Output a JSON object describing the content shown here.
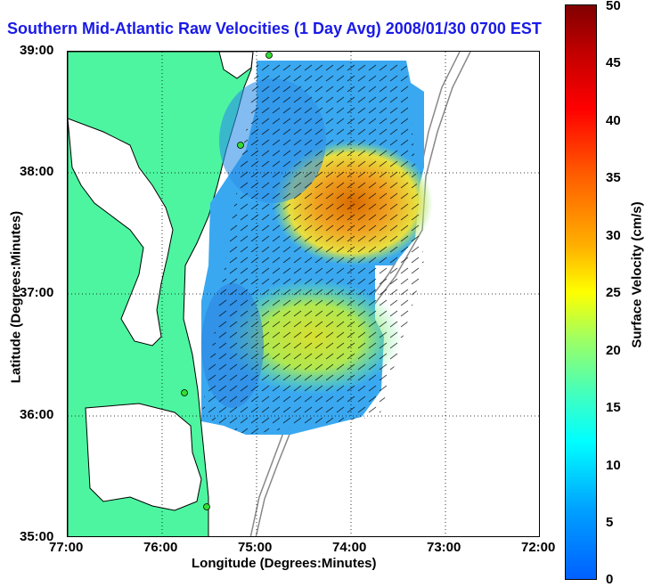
{
  "title": "Southern Mid-Atlantic Raw Velocities (1 Day Avg) 2008/01/30 0700 EST",
  "axes": {
    "xlabel": "Longitude (Degrees:Minutes)",
    "ylabel": "Latitude (Degrees:Minutes)",
    "xticks": [
      "77:00",
      "76:00",
      "75:00",
      "74:00",
      "73:00",
      "72:00"
    ],
    "yticks": [
      "39:00",
      "38:00",
      "37:00",
      "36:00",
      "35:00"
    ]
  },
  "colorbar": {
    "label": "Surface Velocity (cm/s)",
    "ticks": [
      "50",
      "45",
      "40",
      "35",
      "30",
      "25",
      "20",
      "15",
      "10",
      "5",
      "0"
    ]
  },
  "colors": {
    "land": "#4df5a0",
    "water": "#ffffff",
    "coast": "#000000",
    "bathymetry": "#888888",
    "stations": "#33dd33",
    "title": "#1a1ae6"
  }
}
